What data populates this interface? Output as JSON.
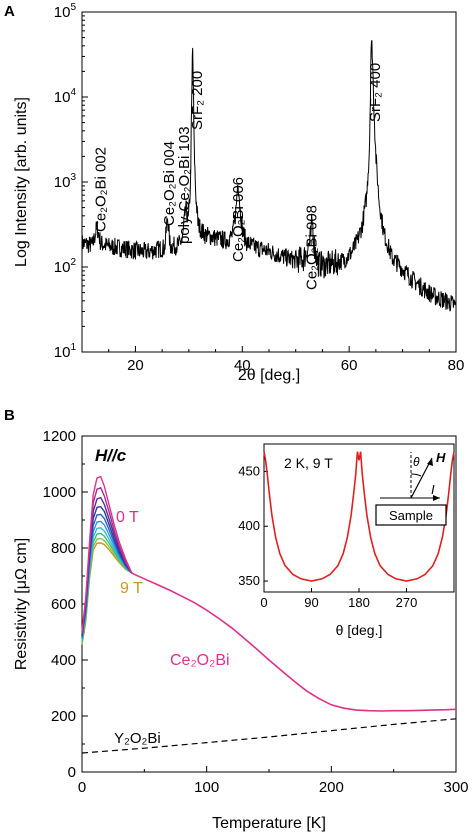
{
  "panels": {
    "a_label": "A",
    "b_label": "B"
  },
  "chart_data": [
    {
      "type": "line",
      "panel": "A",
      "xlabel": "2θ [deg.]",
      "ylabel": "Log Intensity [arb. units]",
      "xlim": [
        10,
        80
      ],
      "ylim": [
        10,
        100000
      ],
      "yscale": "log",
      "x_ticks": [
        20,
        40,
        60,
        80
      ],
      "y_ticks": [
        "10^1",
        "10^2",
        "10^3",
        "10^4",
        "10^5"
      ],
      "grid": false,
      "series": [
        {
          "color": "#000000",
          "x": [
            10,
            11,
            12,
            12.8,
            13.5,
            15,
            18,
            20,
            22,
            24,
            25.5,
            26,
            26.5,
            28,
            28.8,
            29.4,
            29.9,
            30.3,
            30.7,
            31.0,
            31.3,
            31.7,
            32.2,
            33,
            35,
            37,
            38.2,
            38.8,
            39.2,
            39.6,
            40.1,
            40.8,
            42,
            44,
            46,
            48,
            50,
            51.5,
            52.7,
            53.1,
            53.5,
            54.2,
            55.5,
            57,
            59,
            60.5,
            61.5,
            62.5,
            63.3,
            63.8,
            64.1,
            64.3,
            64.6,
            65.0,
            65.6,
            66.5,
            68,
            70,
            72,
            74,
            76,
            78,
            80
          ],
          "y": [
            190,
            185,
            180,
            300,
            190,
            175,
            165,
            155,
            150,
            160,
            170,
            400,
            175,
            180,
            210,
            500,
            350,
            900,
            45000,
            2500,
            700,
            330,
            280,
            240,
            220,
            205,
            240,
            450,
            1100,
            480,
            260,
            195,
            175,
            160,
            145,
            130,
            120,
            125,
            200,
            350,
            170,
            110,
            105,
            110,
            120,
            150,
            200,
            320,
            700,
            2500,
            38000,
            40000,
            9000,
            2000,
            600,
            250,
            130,
            95,
            70,
            55,
            45,
            40,
            35
          ]
        }
      ],
      "annotations": [
        {
          "text": "Ce₂O₂Bi 002",
          "x": 13.5
        },
        {
          "text": "Ce₂O₂Bi 004",
          "x": 26.3
        },
        {
          "text": "poly-Ce₂O₂Bi 103",
          "x": 29.1
        },
        {
          "text": "SrF₂ 200",
          "x": 31.5
        },
        {
          "text": "Ce₂O₂Bi 006",
          "x": 39.2
        },
        {
          "text": "Ce₂O₂Bi 008",
          "x": 53.0
        },
        {
          "text": "SrF₂ 400",
          "x": 64.8
        }
      ]
    },
    {
      "type": "line",
      "panel": "B",
      "title": "H//c",
      "xlabel": "Temperature [K]",
      "ylabel": "Resistivity [μΩ cm]",
      "xlim": [
        0,
        300
      ],
      "ylim": [
        0,
        1200
      ],
      "x_ticks": [
        0,
        100,
        200,
        300
      ],
      "y_ticks": [
        0,
        200,
        400,
        600,
        800,
        1000,
        1200
      ],
      "grid": false,
      "labels": {
        "zero_field": "0 T",
        "high_field": "9 T",
        "ce_compound": "Ce₂O₂Bi",
        "y_compound": "Y₂O₂Bi"
      },
      "series": [
        {
          "name": "Ce₂O₂Bi",
          "color": "#e0308a",
          "x": [
            40,
            50,
            60,
            70,
            80,
            90,
            100,
            110,
            120,
            130,
            140,
            150,
            160,
            170,
            180,
            190,
            200,
            210,
            220,
            230,
            240,
            250,
            260,
            270,
            280,
            290,
            300
          ],
          "y": [
            710,
            690,
            670,
            650,
            628,
            605,
            578,
            548,
            515,
            478,
            440,
            400,
            362,
            325,
            290,
            262,
            240,
            228,
            221,
            219,
            218,
            219,
            219,
            220,
            221,
            222,
            224
          ]
        },
        {
          "name": "Y₂O₂Bi",
          "color": "#000000",
          "dash": true,
          "x": [
            0,
            50,
            100,
            150,
            200,
            250,
            300
          ],
          "y": [
            68,
            85,
            105,
            125,
            148,
            170,
            190
          ]
        }
      ],
      "field_curves": {
        "x": [
          0,
          3,
          6,
          9,
          12,
          15,
          18,
          22,
          26,
          30,
          35,
          40
        ],
        "curves": [
          {
            "field": "0 T",
            "color": "#e0308a",
            "y": [
              500,
              620,
              820,
              990,
              1050,
              1055,
              1020,
              950,
              880,
              820,
              760,
              710
            ]
          },
          {
            "field": "1 T",
            "color": "#a03090",
            "y": [
              495,
              610,
              800,
              960,
              1010,
              1015,
              985,
              925,
              860,
              805,
              750,
              710
            ]
          },
          {
            "field": "2 T",
            "color": "#5a2c9a",
            "y": [
              490,
              600,
              785,
              930,
              975,
              980,
              955,
              900,
              845,
              795,
              745,
              710
            ]
          },
          {
            "field": "3 T",
            "color": "#2b3aa0",
            "y": [
              485,
              590,
              770,
              905,
              945,
              948,
              930,
              880,
              830,
              785,
              740,
              710
            ]
          },
          {
            "field": "4 T",
            "color": "#2a64c8",
            "y": [
              480,
              580,
              755,
              880,
              918,
              920,
              905,
              862,
              818,
              777,
              736,
              710
            ]
          },
          {
            "field": "5 T",
            "color": "#2e95e0",
            "y": [
              475,
              570,
              740,
              858,
              893,
              895,
              882,
              845,
              806,
              770,
              733,
              710
            ]
          },
          {
            "field": "6 T",
            "color": "#2cc0d8",
            "y": [
              470,
              560,
              725,
              838,
              870,
              872,
              860,
              829,
              795,
              763,
              730,
              710
            ]
          },
          {
            "field": "7 T",
            "color": "#39c07a",
            "y": [
              465,
              550,
              712,
              820,
              850,
              852,
              842,
              815,
              786,
              757,
              728,
              710
            ]
          },
          {
            "field": "8 T",
            "color": "#8cc63f",
            "y": [
              460,
              542,
              700,
              805,
              832,
              834,
              826,
              803,
              777,
              752,
              726,
              710
            ]
          },
          {
            "field": "9 T",
            "color": "#c89a1a",
            "y": [
              455,
              535,
              690,
              792,
              817,
              818,
              812,
              792,
              770,
              747,
              724,
              710
            ]
          }
        ]
      }
    },
    {
      "type": "line",
      "panel": "B-inset",
      "annotation": "2 K, 9 T",
      "xlabel": "θ [deg.]",
      "xlim": [
        0,
        360
      ],
      "ylim": [
        340,
        475
      ],
      "x_ticks": [
        0,
        90,
        180,
        270
      ],
      "y_ticks": [
        350,
        400,
        450
      ],
      "grid": false,
      "series": [
        {
          "color": "#e02020",
          "x": [
            0,
            3,
            6,
            10,
            15,
            22,
            30,
            40,
            55,
            70,
            90,
            110,
            125,
            140,
            150,
            158,
            165,
            170,
            174,
            177,
            180,
            183,
            186,
            190,
            195,
            202,
            210,
            220,
            235,
            250,
            270,
            290,
            305,
            320,
            330,
            338,
            345,
            350,
            354,
            357,
            360
          ],
          "y": [
            468,
            460,
            448,
            430,
            410,
            390,
            375,
            364,
            356,
            352,
            350,
            352,
            356,
            364,
            375,
            390,
            410,
            430,
            448,
            468,
            460,
            468,
            448,
            430,
            410,
            390,
            375,
            364,
            356,
            352,
            350,
            352,
            356,
            364,
            375,
            390,
            410,
            430,
            448,
            460,
            468
          ]
        }
      ],
      "diagram": {
        "sample_label": "Sample",
        "field_label": "H",
        "current_label": "I",
        "angle_label": "θ"
      }
    }
  ]
}
